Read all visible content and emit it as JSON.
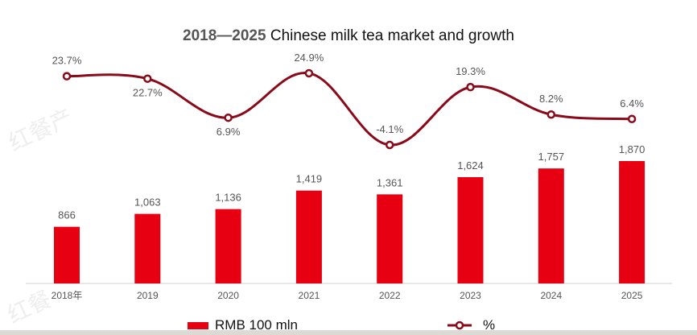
{
  "title": {
    "year_range": "2018—2025",
    "text": "Chinese milk tea market and growth"
  },
  "legend": {
    "bar_label": "RMB 100 mln",
    "line_label": "%"
  },
  "colors": {
    "bar": "#e60012",
    "line": "#8b0a1a",
    "axis": "#cfcfcf",
    "label": "#555555"
  },
  "chart_data": {
    "type": "bar+line",
    "title": "2018—2025 Chinese milk tea market and growth",
    "categories": [
      "2018年",
      "2019",
      "2020",
      "2021",
      "2022",
      "2023",
      "2024",
      "2025"
    ],
    "series": [
      {
        "name": "RMB 100 mln",
        "type": "bar",
        "values": [
          866,
          1063,
          1136,
          1419,
          1361,
          1624,
          1757,
          1870
        ],
        "labels": [
          "866",
          "1,063",
          "1,136",
          "1,419",
          "1,361",
          "1,624",
          "1,757",
          "1,870"
        ]
      },
      {
        "name": "%",
        "type": "line",
        "values": [
          23.7,
          22.7,
          6.9,
          24.9,
          -4.1,
          19.3,
          8.2,
          6.4
        ],
        "labels": [
          "23.7%",
          "22.7%",
          "6.9%",
          "24.9%",
          "-4.1%",
          "19.3%",
          "8.2%",
          "6.4%"
        ]
      }
    ],
    "xlabel": "",
    "ylabel": "",
    "bar_ylim": [
      0,
      1870
    ],
    "line_ylim": [
      -4.1,
      24.9
    ],
    "grid": false,
    "legend_position": "bottom"
  }
}
